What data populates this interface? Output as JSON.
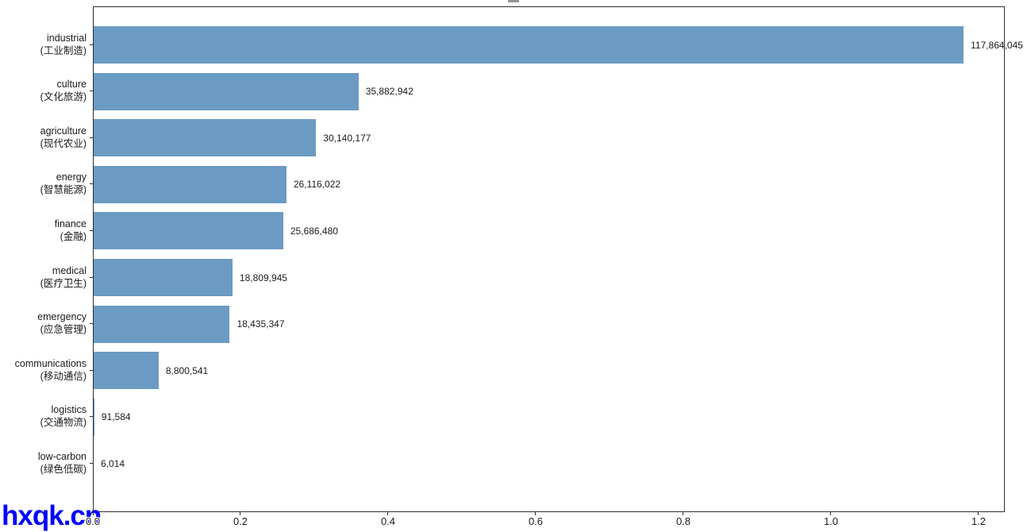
{
  "chart_data": {
    "type": "bar",
    "orientation": "horizontal",
    "title": "",
    "xlabel": "",
    "ylabel": "",
    "grid": false,
    "legend": null,
    "bar_color": "#6b9bc3",
    "axis_color": "#2e2e2e",
    "text_color": "#1a1a1a",
    "xlim": [
      0,
      123550000
    ],
    "x_unit_scale": "1e8",
    "xticks": [
      {
        "value": 0,
        "label": "0.0"
      },
      {
        "value": 20000000,
        "label": "0.2"
      },
      {
        "value": 40000000,
        "label": "0.4"
      },
      {
        "value": 60000000,
        "label": "0.6"
      },
      {
        "value": 80000000,
        "label": "0.8"
      },
      {
        "value": 100000000,
        "label": "1.0"
      },
      {
        "value": 120000000,
        "label": "1.2"
      }
    ],
    "categories": [
      {
        "label_en": "industrial",
        "label_zh": "(工业制造)",
        "value": 117864045,
        "value_label": "117,864,045"
      },
      {
        "label_en": "culture",
        "label_zh": "(文化旅游)",
        "value": 35882942,
        "value_label": "35,882,942"
      },
      {
        "label_en": "agriculture",
        "label_zh": "(现代农业)",
        "value": 30140177,
        "value_label": "30,140,177"
      },
      {
        "label_en": "energy",
        "label_zh": "(智慧能源)",
        "value": 26116022,
        "value_label": "26,116,022"
      },
      {
        "label_en": "finance",
        "label_zh": "(金融)",
        "value": 25686480,
        "value_label": "25,686,480"
      },
      {
        "label_en": "medical",
        "label_zh": "(医疗卫生)",
        "value": 18809945,
        "value_label": "18,809,945"
      },
      {
        "label_en": "emergency",
        "label_zh": "(应急管理)",
        "value": 18435347,
        "value_label": "18,435,347"
      },
      {
        "label_en": "communications",
        "label_zh": "(移动通信)",
        "value": 8800541,
        "value_label": "8,800,541"
      },
      {
        "label_en": "logistics",
        "label_zh": "(交通物流)",
        "value": 91584,
        "value_label": "91,584"
      },
      {
        "label_en": "low-carbon",
        "label_zh": "(绿色低碳)",
        "value": 6014,
        "value_label": "6,014"
      }
    ]
  },
  "watermark": {
    "text": "hxqk.cn",
    "color": "#0000ff"
  }
}
